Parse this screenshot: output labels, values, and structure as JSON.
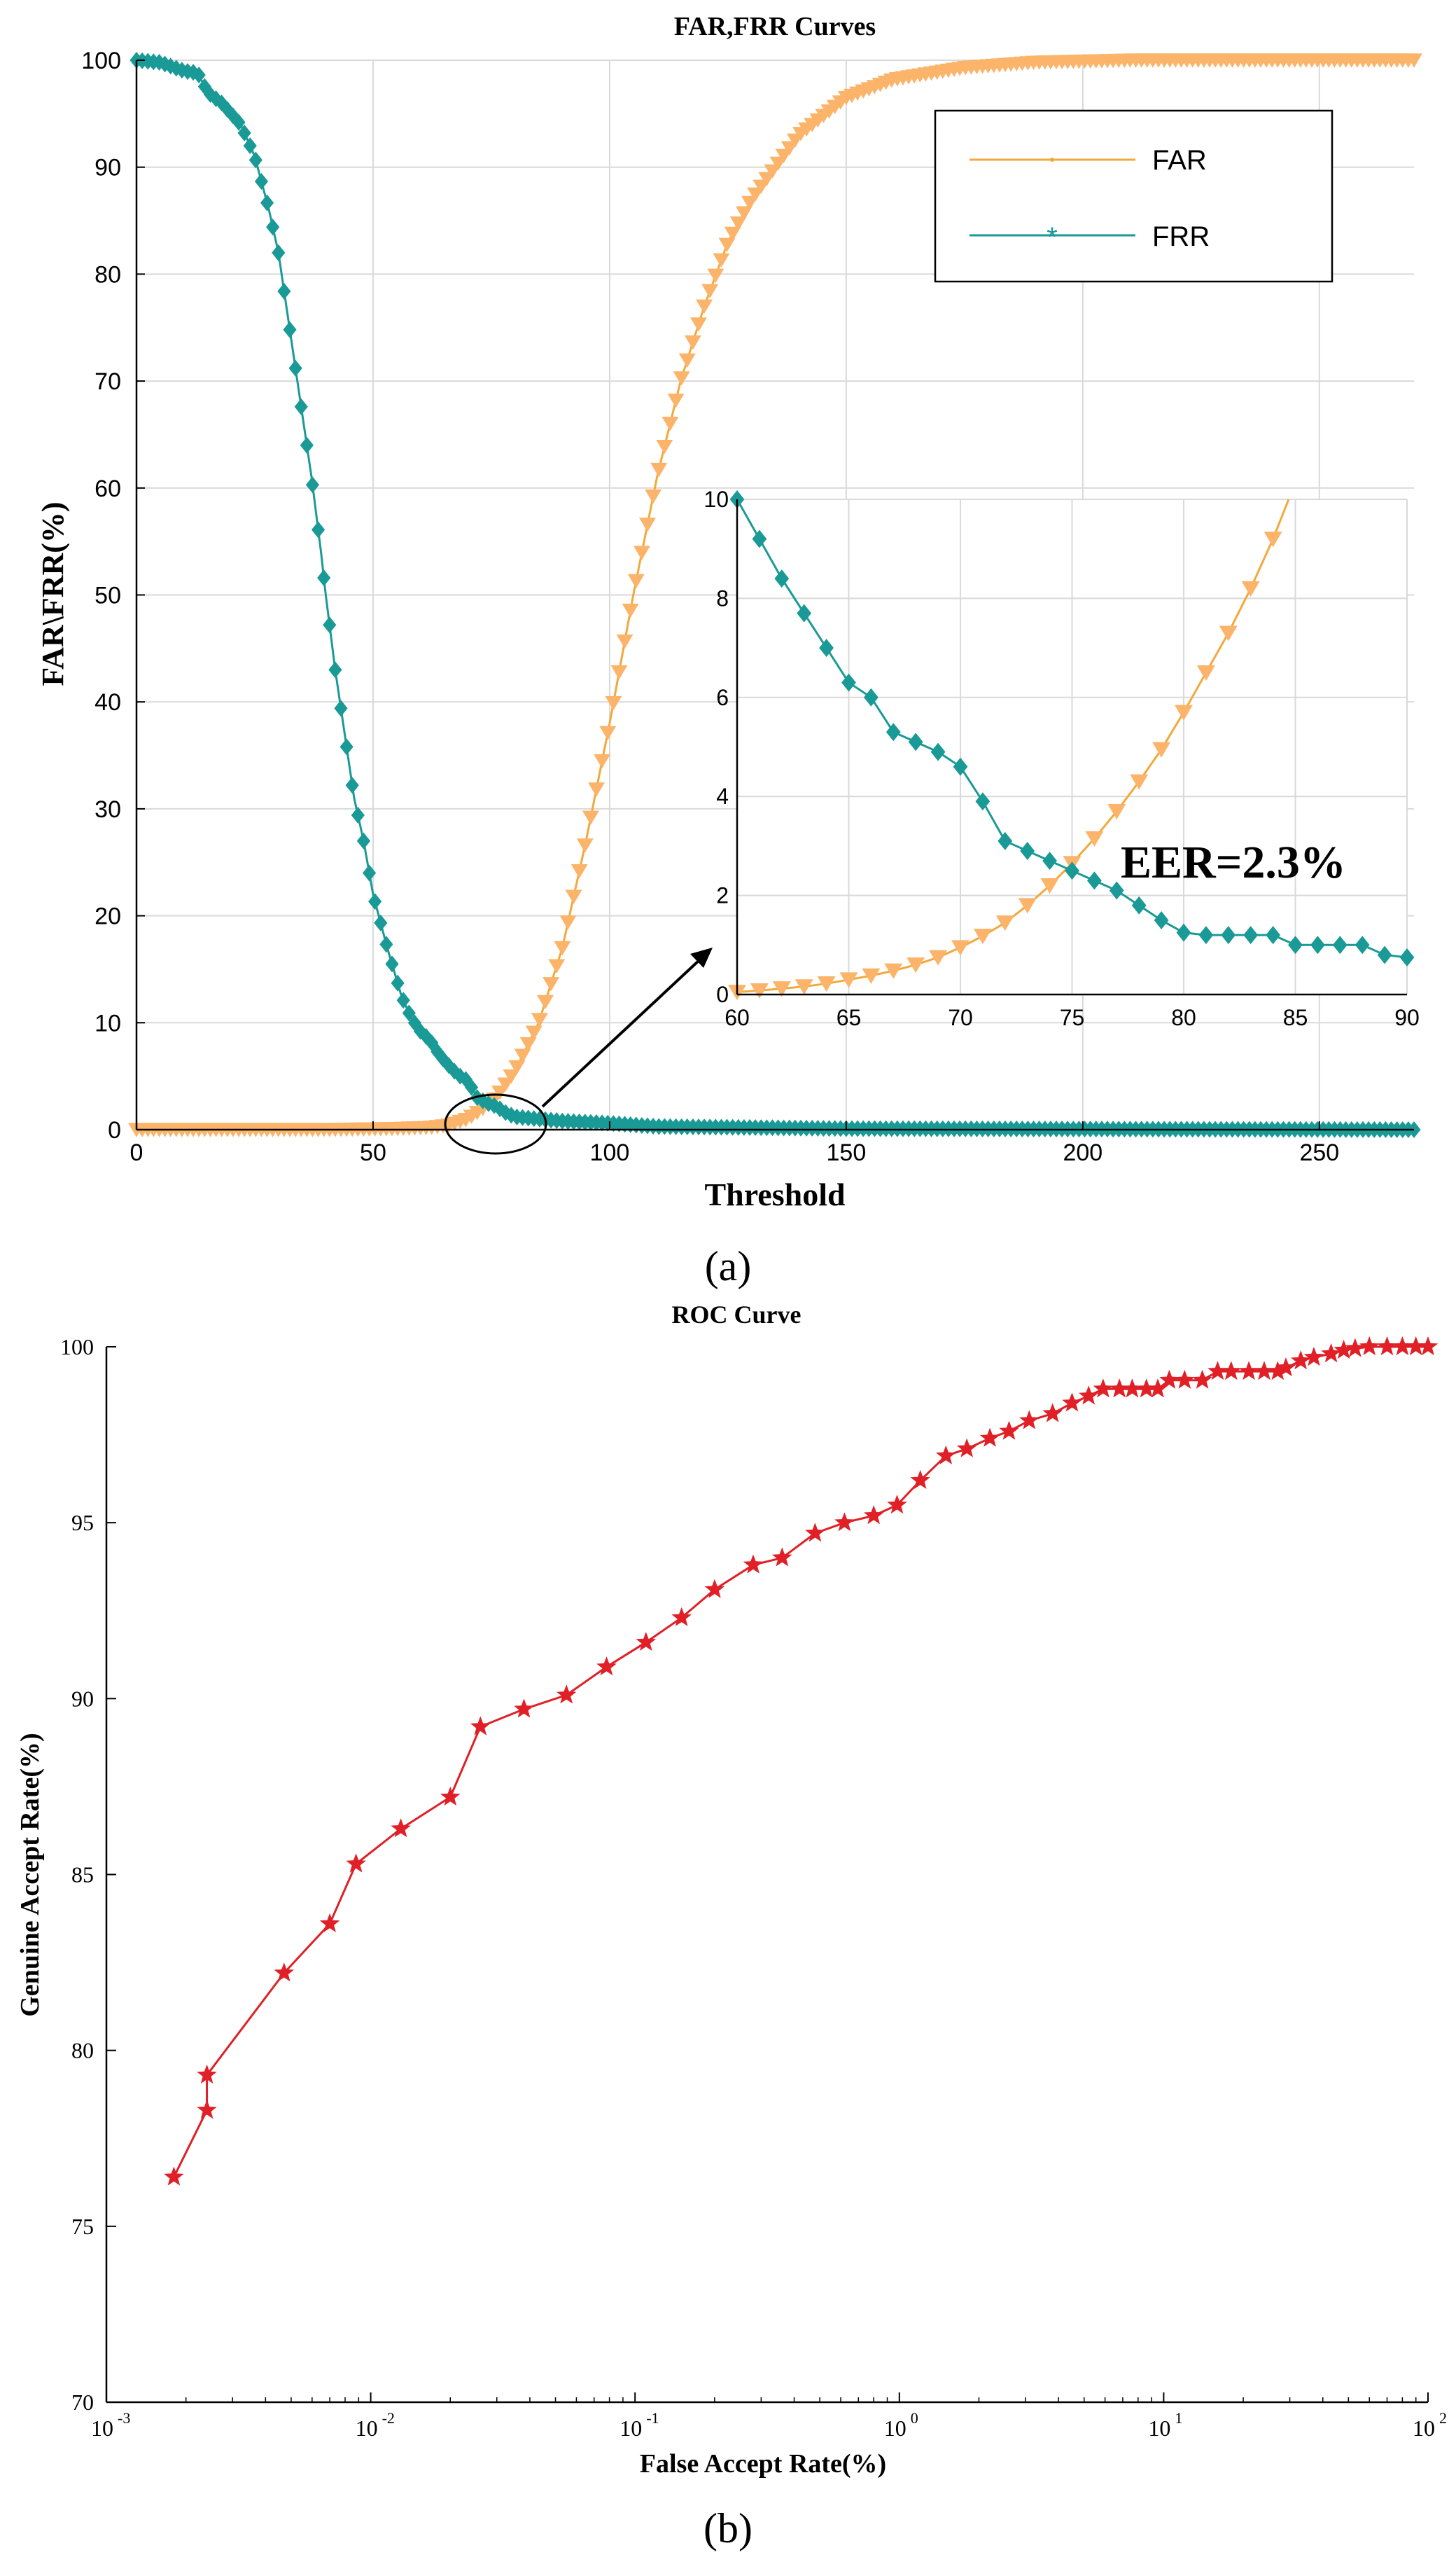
{
  "panel_a": {
    "caption": "(a)",
    "legend": {
      "far_label": "FAR",
      "frr_label": "FRR"
    },
    "annotation": "EER=2.3%"
  },
  "panel_b": {
    "caption": "(b)"
  },
  "colors": {
    "far": "#FBB46A",
    "far_line": "#F2A93B",
    "frr": "#1A9A96",
    "roc": "#E01F26",
    "grid": "#D9D9D9",
    "axis": "#000000"
  },
  "chart_data": [
    {
      "type": "line",
      "title": "FAR,FRR Curves",
      "xlabel": "Threshold",
      "ylabel": "FAR\\FRR(%)",
      "xlim": [
        0,
        270
      ],
      "ylim": [
        0,
        100
      ],
      "xticks": [
        0,
        50,
        100,
        150,
        200,
        250
      ],
      "yticks": [
        0,
        10,
        20,
        30,
        40,
        50,
        60,
        70,
        80,
        90,
        100
      ],
      "grid": true,
      "legend_position": "top-right",
      "series": [
        {
          "name": "FAR",
          "marker": "triangle-down",
          "points": [
            [
              0,
              0
            ],
            [
              40,
              0
            ],
            [
              55,
              0.1
            ],
            [
              62,
              0.2
            ],
            [
              66,
              0.4
            ],
            [
              70,
              1
            ],
            [
              73,
              1.9
            ],
            [
              76,
              3
            ],
            [
              80,
              5.5
            ],
            [
              85,
              10
            ],
            [
              90,
              17
            ],
            [
              95,
              27
            ],
            [
              100,
              38
            ],
            [
              105,
              50
            ],
            [
              110,
              61
            ],
            [
              115,
              70
            ],
            [
              120,
              77
            ],
            [
              125,
              83
            ],
            [
              130,
              87
            ],
            [
              140,
              93
            ],
            [
              150,
              96.5
            ],
            [
              160,
              98.2
            ],
            [
              175,
              99.3
            ],
            [
              190,
              99.8
            ],
            [
              210,
              100
            ],
            [
              270,
              100
            ]
          ]
        },
        {
          "name": "FRR",
          "marker": "diamond",
          "points": [
            [
              0,
              100
            ],
            [
              5,
              99.8
            ],
            [
              10,
              99
            ],
            [
              13,
              98.8
            ],
            [
              15,
              97
            ],
            [
              18,
              96
            ],
            [
              22,
              94
            ],
            [
              25,
              91
            ],
            [
              28,
              86
            ],
            [
              30,
              82
            ],
            [
              32,
              76
            ],
            [
              35,
              67
            ],
            [
              37,
              61
            ],
            [
              39,
              54
            ],
            [
              40,
              50
            ],
            [
              42,
              43
            ],
            [
              44,
              37
            ],
            [
              46,
              31
            ],
            [
              48,
              27
            ],
            [
              50,
              22
            ],
            [
              53,
              17
            ],
            [
              56,
              12.5
            ],
            [
              58,
              10.5
            ],
            [
              60,
              9.2
            ],
            [
              62,
              8.4
            ],
            [
              64,
              7
            ],
            [
              66,
              6
            ],
            [
              68,
              5.1
            ],
            [
              70,
              4.6
            ],
            [
              72,
              3
            ],
            [
              74,
              2.5
            ],
            [
              76,
              2.2
            ],
            [
              78,
              1.6
            ],
            [
              80,
              1.2
            ],
            [
              85,
              1
            ],
            [
              90,
              0.8
            ],
            [
              100,
              0.6
            ],
            [
              110,
              0.3
            ],
            [
              150,
              0.1
            ],
            [
              270,
              0
            ]
          ]
        }
      ]
    },
    {
      "type": "line",
      "title": "",
      "inset": true,
      "xlim": [
        60,
        90
      ],
      "ylim": [
        0,
        10
      ],
      "xticks": [
        60,
        65,
        70,
        75,
        80,
        85,
        90
      ],
      "yticks": [
        0,
        2,
        4,
        6,
        8,
        10
      ],
      "grid": true,
      "series": [
        {
          "name": "FAR",
          "marker": "triangle-down",
          "points": [
            [
              60,
              0.05
            ],
            [
              61,
              0.08
            ],
            [
              62,
              0.12
            ],
            [
              63,
              0.16
            ],
            [
              64,
              0.22
            ],
            [
              65,
              0.3
            ],
            [
              66,
              0.38
            ],
            [
              67,
              0.48
            ],
            [
              68,
              0.6
            ],
            [
              69,
              0.75
            ],
            [
              70,
              0.95
            ],
            [
              71,
              1.18
            ],
            [
              72,
              1.45
            ],
            [
              73,
              1.8
            ],
            [
              74,
              2.2
            ],
            [
              75,
              2.65
            ],
            [
              76,
              3.15
            ],
            [
              77,
              3.7
            ],
            [
              78,
              4.3
            ],
            [
              79,
              4.95
            ],
            [
              80,
              5.7
            ],
            [
              81,
              6.5
            ],
            [
              82,
              7.3
            ],
            [
              83,
              8.2
            ],
            [
              84,
              9.2
            ],
            [
              84.7,
              10
            ]
          ]
        },
        {
          "name": "FRR",
          "marker": "diamond",
          "points": [
            [
              60,
              10
            ],
            [
              61,
              9.2
            ],
            [
              62,
              8.4
            ],
            [
              63,
              7.7
            ],
            [
              64,
              7
            ],
            [
              65,
              6.3
            ],
            [
              66,
              6
            ],
            [
              67,
              5.3
            ],
            [
              68,
              5.1
            ],
            [
              69,
              4.9
            ],
            [
              70,
              4.6
            ],
            [
              71,
              3.9
            ],
            [
              72,
              3.1
            ],
            [
              73,
              2.9
            ],
            [
              74,
              2.7
            ],
            [
              75,
              2.5
            ],
            [
              76,
              2.3
            ],
            [
              77,
              2.1
            ],
            [
              78,
              1.8
            ],
            [
              79,
              1.5
            ],
            [
              80,
              1.25
            ],
            [
              81,
              1.2
            ],
            [
              82,
              1.2
            ],
            [
              83,
              1.2
            ],
            [
              84,
              1.2
            ],
            [
              85,
              1.0
            ],
            [
              86,
              1.0
            ],
            [
              87,
              1.0
            ],
            [
              88,
              1.0
            ],
            [
              89,
              0.8
            ],
            [
              90,
              0.75
            ]
          ]
        }
      ]
    },
    {
      "type": "line",
      "title": "ROC Curve",
      "xlabel": "False Accept Rate(%)",
      "ylabel": "Genuine Accept Rate(%)",
      "xscale": "log",
      "xlim": [
        0.001,
        100
      ],
      "ylim": [
        70,
        100
      ],
      "xticks": [
        {
          "base": "10",
          "exp": "-3"
        },
        {
          "base": "10",
          "exp": "-2"
        },
        {
          "base": "10",
          "exp": "-1"
        },
        {
          "base": "10",
          "exp": "0"
        },
        {
          "base": "10",
          "exp": "1"
        },
        {
          "base": "10",
          "exp": "2"
        }
      ],
      "yticks": [
        70,
        75,
        80,
        85,
        90,
        95,
        100
      ],
      "grid": false,
      "series": [
        {
          "name": "",
          "marker": "star",
          "points": [
            [
              0.0018,
              76.4
            ],
            [
              0.0024,
              78.3
            ],
            [
              0.0024,
              79.3
            ],
            [
              0.0047,
              82.2
            ],
            [
              0.007,
              83.6
            ],
            [
              0.0088,
              85.3
            ],
            [
              0.013,
              86.3
            ],
            [
              0.02,
              87.2
            ],
            [
              0.026,
              89.2
            ],
            [
              0.038,
              89.7
            ],
            [
              0.055,
              90.1
            ],
            [
              0.078,
              90.9
            ],
            [
              0.11,
              91.6
            ],
            [
              0.15,
              92.3
            ],
            [
              0.2,
              93.1
            ],
            [
              0.28,
              93.8
            ],
            [
              0.36,
              94.0
            ],
            [
              0.48,
              94.7
            ],
            [
              0.62,
              95.0
            ],
            [
              0.8,
              95.2
            ],
            [
              0.98,
              95.5
            ],
            [
              1.2,
              96.2
            ],
            [
              1.5,
              96.9
            ],
            [
              1.8,
              97.1
            ],
            [
              2.2,
              97.4
            ],
            [
              2.6,
              97.6
            ],
            [
              3.1,
              97.9
            ],
            [
              3.8,
              98.1
            ],
            [
              4.5,
              98.4
            ],
            [
              5.2,
              98.6
            ],
            [
              5.9,
              98.8
            ],
            [
              6.8,
              98.8
            ],
            [
              7.6,
              98.8
            ],
            [
              8.6,
              98.8
            ],
            [
              9.5,
              98.8
            ],
            [
              10.5,
              99.05
            ],
            [
              12,
              99.05
            ],
            [
              14,
              99.05
            ],
            [
              16,
              99.3
            ],
            [
              18,
              99.3
            ],
            [
              21,
              99.3
            ],
            [
              24,
              99.3
            ],
            [
              27,
              99.3
            ],
            [
              29,
              99.4
            ],
            [
              33,
              99.6
            ],
            [
              37,
              99.7
            ],
            [
              43,
              99.8
            ],
            [
              48,
              99.9
            ],
            [
              53,
              99.95
            ],
            [
              60,
              100
            ],
            [
              70,
              100
            ],
            [
              80,
              100
            ],
            [
              90,
              100
            ],
            [
              100,
              100
            ]
          ]
        }
      ]
    }
  ]
}
